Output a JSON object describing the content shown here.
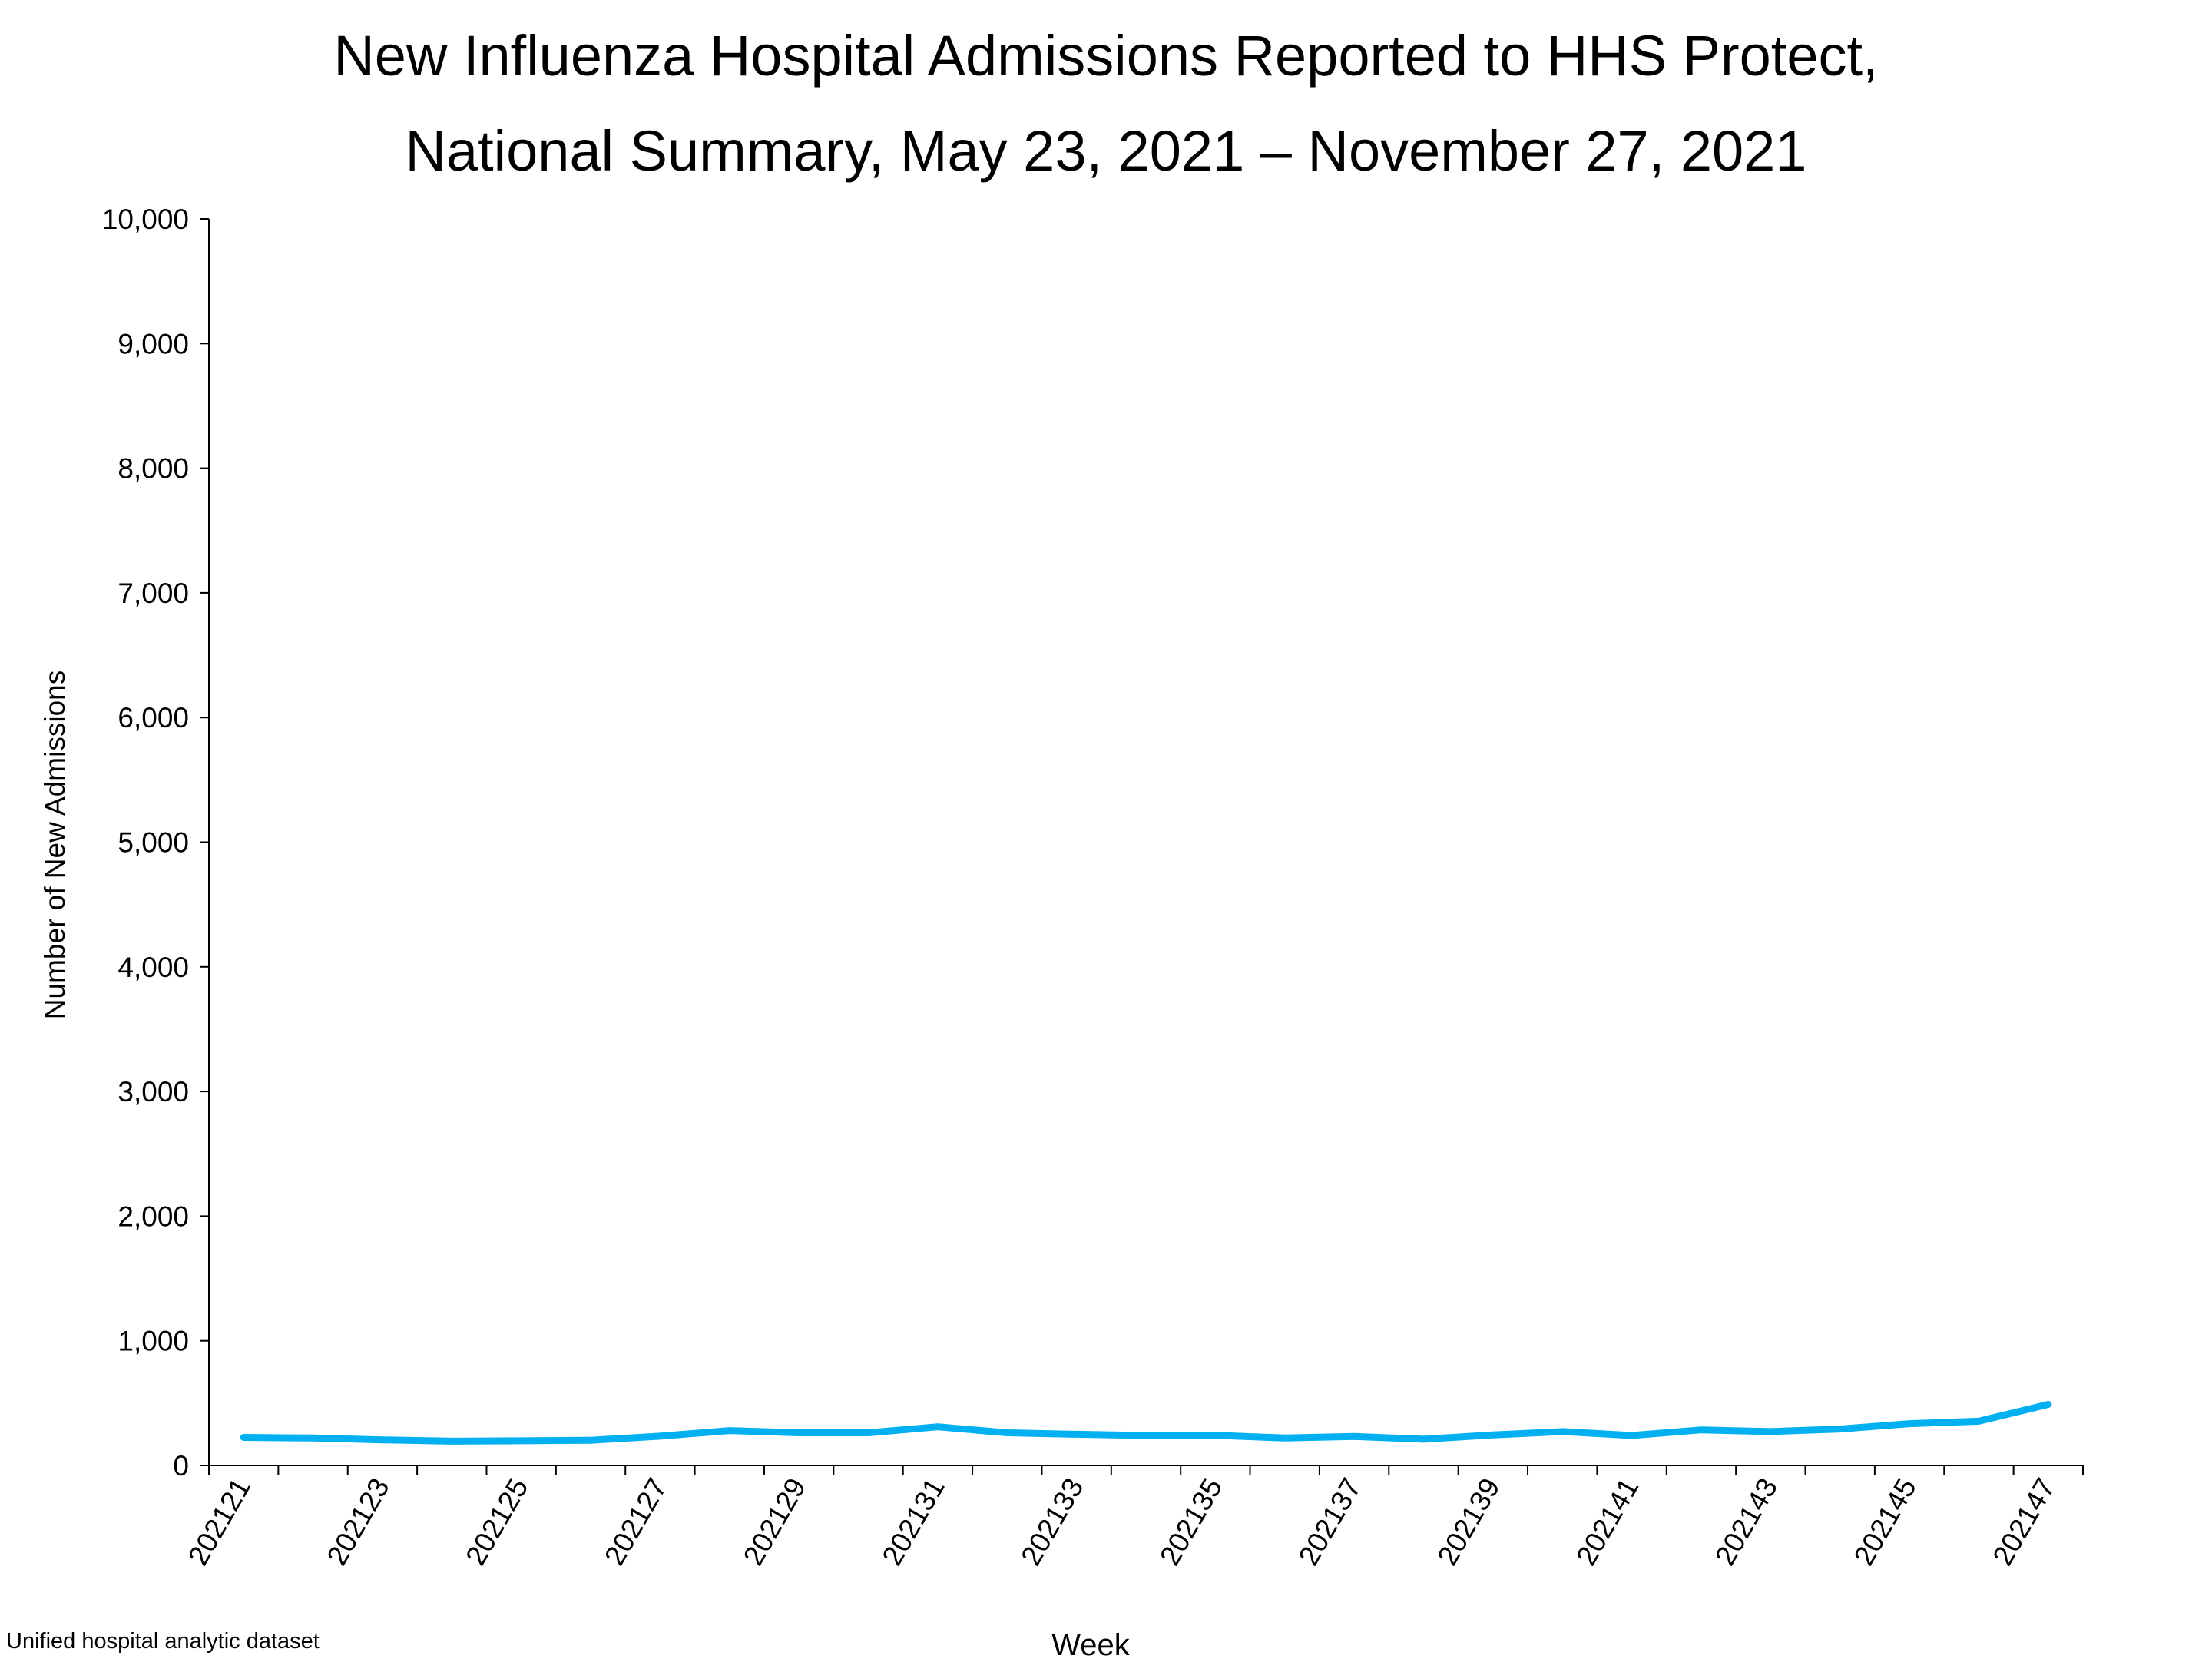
{
  "chart_data": {
    "type": "line",
    "title_line1": "New Influenza Hospital Admissions Reported to HHS Protect,",
    "title_line2": "National Summary, May 23, 2021 – November 27, 2021",
    "xlabel": "Week",
    "ylabel": "Number of New Admissions",
    "ylim": [
      0,
      10000
    ],
    "yticks": [
      "0",
      "1,000",
      "2,000",
      "3,000",
      "4,000",
      "5,000",
      "6,000",
      "7,000",
      "8,000",
      "9,000",
      "10,000"
    ],
    "xtick_labels": [
      "202121",
      "202123",
      "202125",
      "202127",
      "202129",
      "202131",
      "202133",
      "202135",
      "202137",
      "202139",
      "202141",
      "202143",
      "202145",
      "202147"
    ],
    "x": [
      "202121",
      "202122",
      "202123",
      "202124",
      "202125",
      "202126",
      "202127",
      "202128",
      "202129",
      "202130",
      "202131",
      "202132",
      "202133",
      "202134",
      "202135",
      "202136",
      "202137",
      "202138",
      "202139",
      "202140",
      "202141",
      "202142",
      "202143",
      "202144",
      "202145",
      "202146",
      "202147"
    ],
    "series": [
      {
        "color": "#00b0f0",
        "values": [
          225,
          220,
          205,
          195,
          198,
          202,
          235,
          280,
          262,
          262,
          310,
          262,
          250,
          240,
          242,
          220,
          232,
          210,
          245,
          272,
          240,
          285,
          272,
          292,
          335,
          355,
          490
        ]
      }
    ],
    "grid": false,
    "legend": "none"
  },
  "footer": {
    "source": "Unified hospital analytic dataset"
  }
}
